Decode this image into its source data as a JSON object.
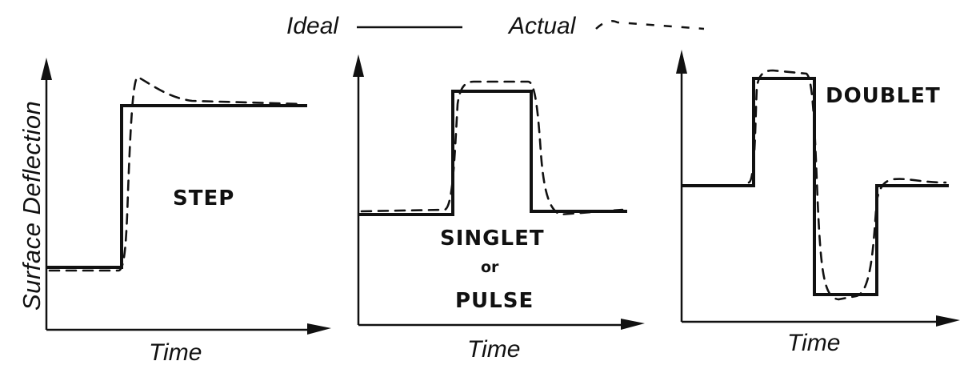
{
  "legend": {
    "ideal_label": "Ideal",
    "actual_label": "Actual"
  },
  "axes": {
    "ylabel": "Surface Deflection",
    "xlabel": "Time"
  },
  "panels": [
    {
      "title": "STEP"
    },
    {
      "title_lines": [
        "SINGLET",
        "or",
        "PULSE"
      ]
    },
    {
      "title": "DOUBLET"
    }
  ]
}
